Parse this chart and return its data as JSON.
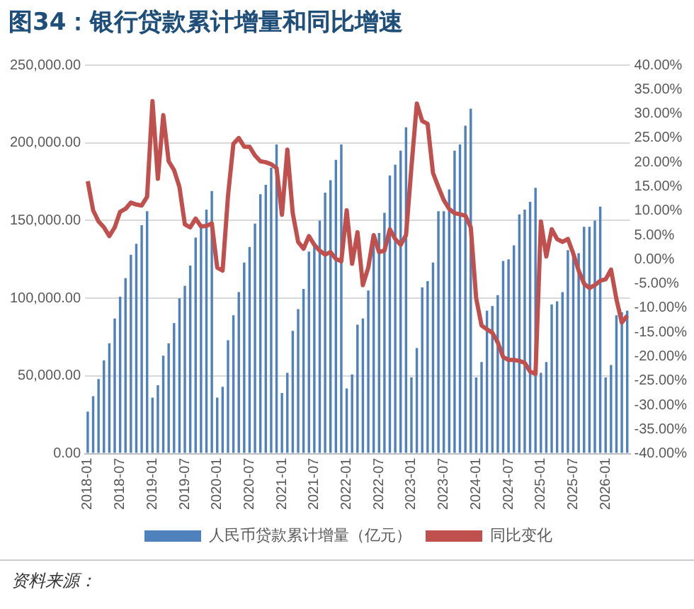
{
  "chart_data": {
    "type": "bar",
    "title": "图34：银行贷款累计增量和同比增速",
    "categories": [
      "2018-01",
      null,
      null,
      null,
      null,
      null,
      "2018-07",
      null,
      null,
      null,
      null,
      null,
      "2019-01",
      null,
      null,
      null,
      null,
      null,
      "2019-07",
      null,
      null,
      null,
      null,
      null,
      "2020-01",
      null,
      null,
      null,
      null,
      null,
      "2020-07",
      null,
      null,
      null,
      null,
      null,
      "2021-01",
      null,
      null,
      null,
      null,
      null,
      "2021-07",
      null,
      null,
      null,
      null,
      null,
      "2022-01",
      null,
      null,
      null,
      null,
      null,
      "2022-07",
      null,
      null,
      null,
      null,
      null,
      "2023-01",
      null,
      null,
      null,
      null,
      null,
      "2023-07",
      null,
      null,
      null,
      null,
      null,
      "2024-01",
      null,
      null,
      null,
      null,
      null,
      "2024-07",
      null,
      null,
      null,
      null,
      null,
      "2025-01",
      null,
      null,
      null,
      null,
      null,
      "2025-07",
      null,
      null,
      null,
      null,
      null,
      "2026-01",
      null,
      null,
      null,
      null
    ],
    "series": [
      {
        "name": "人民币贷款累计增量（亿元）",
        "color": "#4f81bd",
        "values": [
          27000,
          37000,
          48000,
          60000,
          71000,
          87000,
          101000,
          113000,
          128000,
          135000,
          147000,
          156000,
          36000,
          44000,
          63000,
          71000,
          84000,
          100000,
          108000,
          121000,
          139000,
          147000,
          157000,
          169000,
          36000,
          43000,
          73000,
          89000,
          104000,
          123000,
          133000,
          148000,
          167000,
          173000,
          184000,
          199000,
          39000,
          52000,
          79000,
          93000,
          106000,
          130000,
          136000,
          150000,
          168000,
          176000,
          189000,
          199000,
          42000,
          51000,
          83000,
          87000,
          105000,
          137000,
          142000,
          155000,
          179000,
          186000,
          195000,
          210000,
          49000,
          68000,
          107000,
          111000,
          123000,
          156000,
          156000,
          170000,
          195000,
          199000,
          211000,
          222000,
          49000,
          59000,
          92000,
          95000,
          102000,
          124000,
          125000,
          134000,
          154000,
          157000,
          162000,
          171000,
          52000,
          59000,
          96000,
          98000,
          104000,
          131000,
          130000,
          129000,
          146000,
          146000,
          150000,
          159000,
          49000,
          57000,
          89000,
          91000,
          92000
        ]
      },
      {
        "name": "同比变化",
        "type": "line",
        "axis": "y2",
        "color": "#c0504d",
        "values": [
          16.1,
          10.1,
          7.8,
          6.6,
          4.8,
          6.6,
          9.8,
          10.4,
          11.7,
          11.3,
          11.1,
          12.9,
          32.6,
          16.6,
          29.7,
          20.2,
          18.4,
          14.9,
          7.2,
          6.6,
          8.4,
          6.8,
          6.9,
          7.4,
          -1.7,
          -2.3,
          13.1,
          23.8,
          25.0,
          23.2,
          23.2,
          21.4,
          20.2,
          20.0,
          19.6,
          18.8,
          9.2,
          22.6,
          9.5,
          3.6,
          2.2,
          4.8,
          3.0,
          1.8,
          1.0,
          1.5,
          0.1,
          -0.4,
          10.1,
          -0.9,
          5.6,
          -5.3,
          -1.7,
          5.0,
          1.5,
          1.8,
          6.2,
          4.2,
          3.0,
          5.0,
          19.0,
          32.1,
          28.5,
          27.9,
          17.8,
          14.9,
          12.2,
          10.4,
          9.5,
          9.3,
          9.0,
          6.6,
          -8.0,
          -13.6,
          -14.4,
          -15.1,
          -17.1,
          -20.1,
          -20.7,
          -20.7,
          -20.9,
          -21.3,
          -23.1,
          -23.6,
          7.8,
          0.6,
          6.2,
          4.2,
          3.6,
          4.2,
          1.2,
          -2.3,
          -5.0,
          -5.9,
          -5.3,
          -4.4,
          -4.1,
          -2.1,
          -8.2,
          -13.0,
          -11.6
        ]
      }
    ],
    "ylim": [
      0,
      250000
    ],
    "yticks": [
      {
        "value": 0,
        "label": "0.00"
      },
      {
        "value": 50000,
        "label": "50,000.00"
      },
      {
        "value": 100000,
        "label": "100,000.00"
      },
      {
        "value": 150000,
        "label": "150,000.00"
      },
      {
        "value": 200000,
        "label": "200,000.00"
      },
      {
        "value": 250000,
        "label": "250,000.00"
      }
    ],
    "y2lim": [
      -40,
      40
    ],
    "y2ticks": [
      {
        "value": -40,
        "label": "-40.00%"
      },
      {
        "value": -35,
        "label": "-35.00%"
      },
      {
        "value": -30,
        "label": "-30.00%"
      },
      {
        "value": -25,
        "label": "-25.00%"
      },
      {
        "value": -20,
        "label": "-20.00%"
      },
      {
        "value": -15,
        "label": "-15.00%"
      },
      {
        "value": -10,
        "label": "-10.00%"
      },
      {
        "value": -5,
        "label": "-5.00%"
      },
      {
        "value": 0,
        "label": "0.00%"
      },
      {
        "value": 5,
        "label": "5.00%"
      },
      {
        "value": 10,
        "label": "10.00%"
      },
      {
        "value": 15,
        "label": "15.00%"
      },
      {
        "value": 20,
        "label": "20.00%"
      },
      {
        "value": 25,
        "label": "25.00%"
      },
      {
        "value": 30,
        "label": "30.00%"
      },
      {
        "value": 35,
        "label": "35.00%"
      },
      {
        "value": 40,
        "label": "40.00%"
      }
    ],
    "grid": "y",
    "legend": "bottom",
    "marker": "none",
    "annotations": [
      "资料来源："
    ]
  }
}
